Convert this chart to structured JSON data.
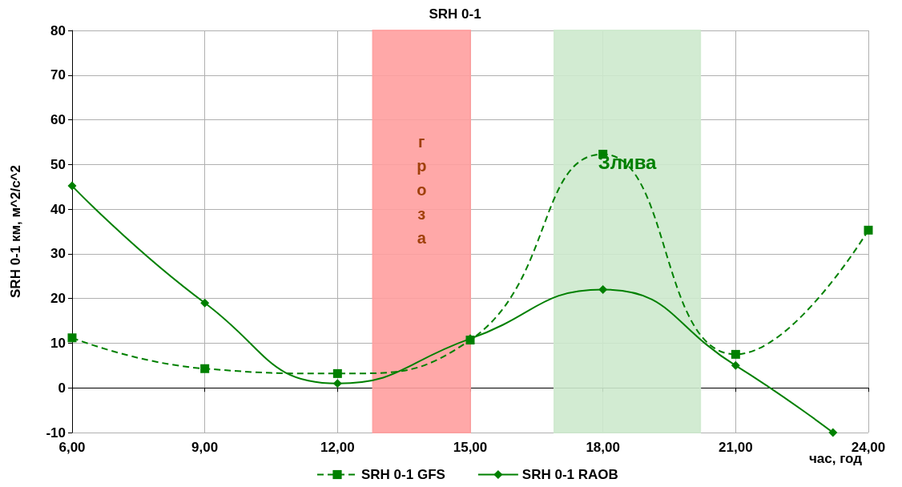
{
  "chart_data": {
    "type": "line",
    "title": "SRH 0-1",
    "xlabel": "час, год",
    "ylabel": "SRH 0-1 км, м^2/с^2",
    "xlim": [
      6,
      24
    ],
    "xticks": [
      {
        "value": 6,
        "label": "6,00"
      },
      {
        "value": 9,
        "label": "9,00"
      },
      {
        "value": 12,
        "label": "12,00"
      },
      {
        "value": 15,
        "label": "15,00"
      },
      {
        "value": 18,
        "label": "18,00"
      },
      {
        "value": 21,
        "label": "21,00"
      },
      {
        "value": 24,
        "label": "24,00"
      }
    ],
    "ylim": [
      -10,
      80
    ],
    "yticks": [
      -10,
      0,
      10,
      20,
      30,
      40,
      50,
      60,
      70,
      80
    ],
    "grid": true,
    "legend": "bottom",
    "series": [
      {
        "name": "SRH 0-1 GFS",
        "color": "#008000",
        "marker": "square",
        "line_style": "dashed",
        "x": [
          6,
          9,
          12,
          15,
          18,
          21,
          24
        ],
        "values": [
          11.2,
          4.3,
          3.2,
          10.7,
          52.3,
          7.5,
          35.3
        ]
      },
      {
        "name": "SRH 0-1 RAOB",
        "color": "#008000",
        "marker": "diamond",
        "line_style": "solid",
        "x": [
          6,
          9,
          12,
          15,
          18,
          21,
          23.2
        ],
        "values": [
          45.2,
          19,
          1,
          11,
          22,
          5,
          -10
        ]
      }
    ],
    "bands": [
      {
        "axis": "x",
        "from": 12.8,
        "to": 15,
        "label": "гроза",
        "color": "#ff9f9f"
      },
      {
        "axis": "x",
        "from": 16.9,
        "to": 20.2,
        "label": "Злива",
        "color": "#cde9cd"
      }
    ]
  }
}
